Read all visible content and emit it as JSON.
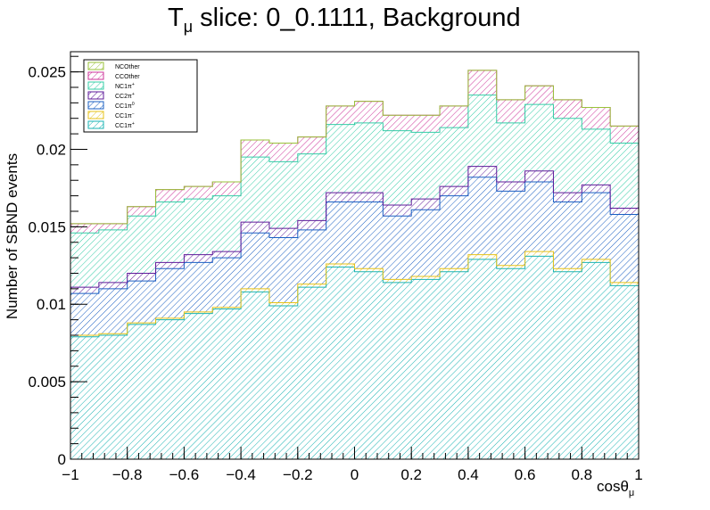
{
  "chart_data": {
    "type": "bar",
    "subtype": "stacked-histogram",
    "title": "T_μ slice: 0_0.1111, Background",
    "title_parts": {
      "main": "T",
      "sub": "μ",
      "rest": " slice: 0_0.1111, Background"
    },
    "xlabel": "cosθ_μ",
    "xlabel_parts": {
      "main": "cosθ",
      "sub": "μ"
    },
    "ylabel": "Number of SBND events",
    "xlim": [
      -1,
      1
    ],
    "ylim": [
      0,
      0.0263
    ],
    "x_ticks": [
      -1,
      -0.8,
      -0.6,
      -0.4,
      -0.2,
      0,
      0.2,
      0.4,
      0.6,
      0.8,
      1
    ],
    "x_tick_labels": [
      "−1",
      "−0.8",
      "−0.6",
      "−0.4",
      "−0.2",
      "0",
      "0.2",
      "0.4",
      "0.6",
      "0.8",
      "1"
    ],
    "y_ticks": [
      0,
      0.005,
      0.01,
      0.015,
      0.02,
      0.025
    ],
    "y_tick_labels": [
      "0",
      "0.005",
      "0.01",
      "0.015",
      "0.02",
      "0.025"
    ],
    "grid": false,
    "legend_position": "top-left",
    "bin_edges": [
      -1,
      -0.9,
      -0.8,
      -0.7,
      -0.6,
      -0.5,
      -0.4,
      -0.3,
      -0.2,
      -0.1,
      0,
      0.1,
      0.2,
      0.3,
      0.4,
      0.5,
      0.6,
      0.7,
      0.8,
      0.9,
      1
    ],
    "series": [
      {
        "name": "CC1π⁺",
        "label_main": "CC1π",
        "label_sup": "+",
        "color": "#1ab3b3",
        "values": [
          0.0079,
          0.008,
          0.0087,
          0.009,
          0.0094,
          0.0097,
          0.0108,
          0.0099,
          0.0111,
          0.0124,
          0.0121,
          0.0114,
          0.0116,
          0.0121,
          0.0129,
          0.0123,
          0.0131,
          0.0121,
          0.0127,
          0.0112
        ]
      },
      {
        "name": "CC1π⁻",
        "label_main": "CC1π",
        "label_sup": "−",
        "color": "#e5c21a",
        "values": [
          0.0001,
          0.0001,
          0.0001,
          0.0001,
          0.0001,
          0.0001,
          0.0002,
          0.0002,
          0.0002,
          0.0002,
          0.0002,
          0.0002,
          0.0002,
          0.0002,
          0.0003,
          0.0002,
          0.0003,
          0.0002,
          0.0002,
          0.0002
        ]
      },
      {
        "name": "CC1π⁰",
        "label_main": "CC1π",
        "label_sup": "0",
        "color": "#1a5fc2",
        "values": [
          0.0027,
          0.0029,
          0.0027,
          0.0032,
          0.0032,
          0.0032,
          0.0036,
          0.0042,
          0.0035,
          0.004,
          0.0043,
          0.0041,
          0.0043,
          0.0047,
          0.005,
          0.0048,
          0.0045,
          0.0043,
          0.0043,
          0.0044
        ]
      },
      {
        "name": "CC2π⁺",
        "label_main": "CC2π",
        "label_sup": "+",
        "color": "#5e1a99",
        "values": [
          0.0004,
          0.0004,
          0.0005,
          0.0004,
          0.0005,
          0.0004,
          0.0007,
          0.0006,
          0.0006,
          0.0006,
          0.0006,
          0.0007,
          0.0007,
          0.0006,
          0.0007,
          0.0006,
          0.0007,
          0.0006,
          0.0005,
          0.0004
        ]
      },
      {
        "name": "NC1π⁺",
        "label_main": "NC1π",
        "label_sup": "+",
        "color": "#33cca6",
        "values": [
          0.0035,
          0.0034,
          0.0037,
          0.0039,
          0.0036,
          0.0036,
          0.0042,
          0.0043,
          0.0043,
          0.0044,
          0.0045,
          0.0048,
          0.0043,
          0.0038,
          0.0046,
          0.0038,
          0.0043,
          0.0048,
          0.0036,
          0.0042
        ]
      },
      {
        "name": "CCOther",
        "label_main": "CCOther",
        "label_sup": "",
        "color": "#cc3399",
        "values": [
          0.0006,
          0.0004,
          0.0006,
          0.0008,
          0.0008,
          0.0009,
          0.0011,
          0.0012,
          0.0011,
          0.0012,
          0.0014,
          0.001,
          0.0011,
          0.0014,
          0.0016,
          0.0015,
          0.0012,
          0.0012,
          0.0014,
          0.0011
        ]
      },
      {
        "name": "NCOther",
        "label_main": "NCOther",
        "label_sup": "",
        "color": "#9ac23a",
        "values": [
          0.0,
          0.0,
          0.0,
          0.0,
          0.0,
          0.0,
          0.0,
          0.0,
          0.0,
          0.0,
          0.0,
          0.0,
          0.0,
          0.0,
          0.0,
          0.0,
          0.0,
          0.0,
          0.0,
          0.0
        ]
      }
    ],
    "legend_order": [
      "NCOther",
      "CCOther",
      "NC1π⁺",
      "CC2π⁺",
      "CC1π⁰",
      "CC1π⁻",
      "CC1π⁺"
    ]
  }
}
